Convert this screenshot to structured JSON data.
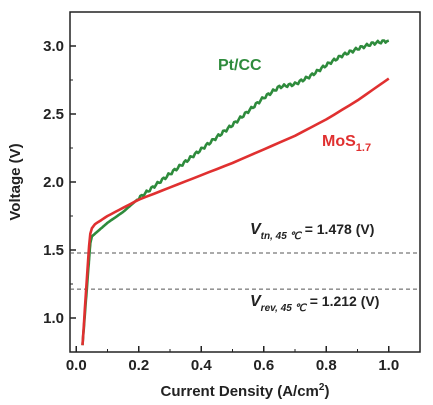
{
  "chart_data": {
    "type": "line",
    "xlabel": "Current Density (A/cm",
    "xlabel_sup": "2",
    "xlabel_tail": ")",
    "ylabel": "Voltage (V)",
    "xlim": [
      -0.02,
      1.1
    ],
    "ylim": [
      0.75,
      3.25
    ],
    "xticks": [
      0.0,
      0.2,
      0.4,
      0.6,
      0.8,
      1.0
    ],
    "xtick_labels": [
      "0.0",
      "0.2",
      "0.4",
      "0.6",
      "0.8",
      "1.0"
    ],
    "yticks": [
      1.0,
      1.5,
      2.0,
      2.5,
      3.0
    ],
    "ytick_labels": [
      "1.0",
      "1.5",
      "2.0",
      "2.5",
      "3.0"
    ],
    "grid": false,
    "series": [
      {
        "name": "Pt/CC",
        "color": "#2e8b3c",
        "x": [
          0.02,
          0.03,
          0.04,
          0.045,
          0.05,
          0.06,
          0.08,
          0.1,
          0.15,
          0.2,
          0.25,
          0.3,
          0.35,
          0.4,
          0.45,
          0.5,
          0.55,
          0.6,
          0.65,
          0.7,
          0.75,
          0.8,
          0.85,
          0.9,
          0.95,
          1.0
        ],
        "y": [
          0.8,
          1.1,
          1.4,
          1.55,
          1.6,
          1.62,
          1.66,
          1.7,
          1.78,
          1.88,
          1.97,
          2.06,
          2.15,
          2.24,
          2.33,
          2.42,
          2.52,
          2.62,
          2.7,
          2.72,
          2.78,
          2.86,
          2.93,
          2.98,
          3.02,
          3.04
        ]
      },
      {
        "name": "MoS",
        "name_sub": "1.7",
        "color": "#e03030",
        "x": [
          0.02,
          0.03,
          0.04,
          0.045,
          0.05,
          0.06,
          0.08,
          0.1,
          0.15,
          0.2,
          0.3,
          0.4,
          0.5,
          0.6,
          0.7,
          0.8,
          0.9,
          1.0
        ],
        "y": [
          0.8,
          1.15,
          1.5,
          1.62,
          1.66,
          1.69,
          1.72,
          1.75,
          1.81,
          1.87,
          1.96,
          2.05,
          2.14,
          2.24,
          2.34,
          2.46,
          2.6,
          2.76
        ]
      }
    ],
    "reference_lines": [
      {
        "y": 1.478,
        "style": "dashed"
      },
      {
        "y": 1.212,
        "style": "dashed"
      }
    ],
    "annotations": [
      {
        "main": "V",
        "sub": "tn, 45 ℃",
        "value": " = 1.478 (V)"
      },
      {
        "main": "V",
        "sub": "rev, 45 ℃",
        "value": " = 1.212 (V)"
      }
    ]
  }
}
